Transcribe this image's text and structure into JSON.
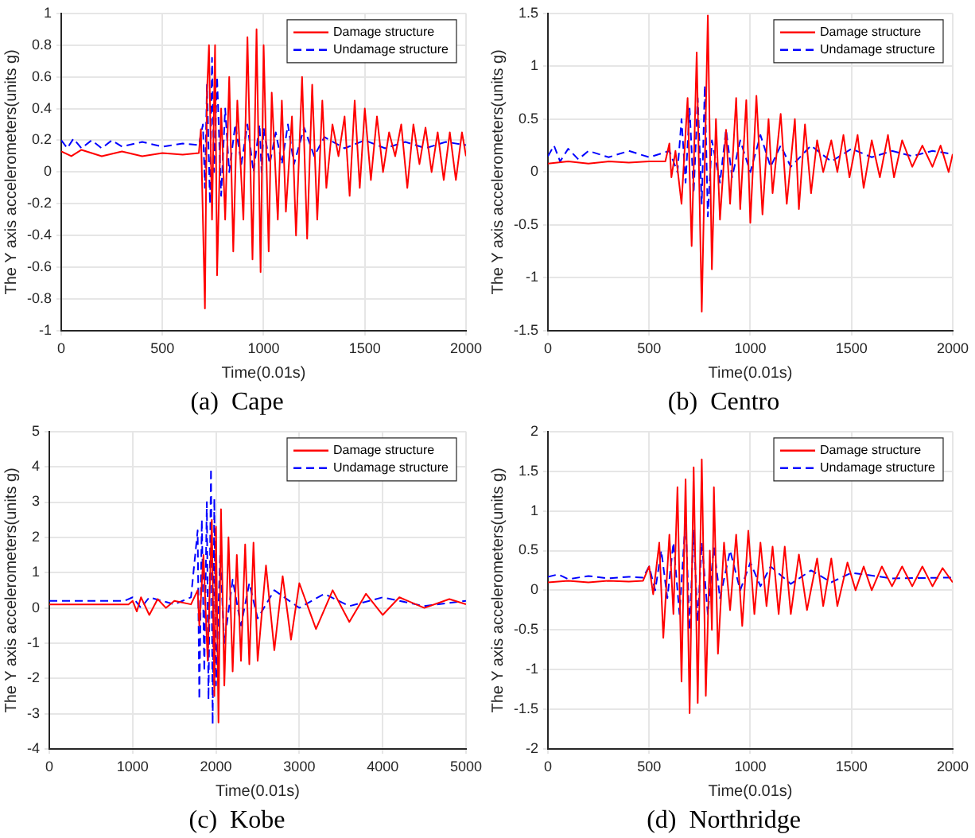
{
  "chart_data": [
    {
      "type": "line",
      "title": "(a)  Cape",
      "xlabel": "Time(0.01s)",
      "ylabel": "The Y axis accelerometers(units g)",
      "xlim": [
        0,
        2000
      ],
      "xticks": [
        0,
        500,
        1000,
        1500,
        2000
      ],
      "ylim": [
        -1,
        1
      ],
      "yticks": [
        -1,
        -0.8,
        -0.6,
        -0.4,
        -0.2,
        0,
        0.2,
        0.4,
        0.6,
        0.8,
        1
      ],
      "grid": true,
      "legend": "top right",
      "marker": "none",
      "series": [
        {
          "name": "Damage structure",
          "color": "#ff0000",
          "line_style": "solid",
          "x": [
            0,
            50,
            100,
            200,
            300,
            400,
            500,
            600,
            680,
            690,
            700,
            710,
            720,
            730,
            745,
            760,
            770,
            790,
            810,
            830,
            850,
            870,
            900,
            920,
            945,
            965,
            985,
            1000,
            1025,
            1040,
            1070,
            1090,
            1110,
            1140,
            1160,
            1190,
            1215,
            1240,
            1265,
            1290,
            1310,
            1340,
            1370,
            1400,
            1425,
            1450,
            1475,
            1500,
            1530,
            1560,
            1590,
            1620,
            1650,
            1680,
            1710,
            1740,
            1770,
            1800,
            1830,
            1860,
            1890,
            1920,
            1950,
            1980,
            2000
          ],
          "values": [
            0.13,
            0.1,
            0.14,
            0.1,
            0.13,
            0.1,
            0.12,
            0.11,
            0.12,
            0.27,
            -0.3,
            -0.86,
            0.5,
            0.8,
            -0.3,
            0.8,
            -0.65,
            0.4,
            -0.3,
            0.6,
            -0.5,
            0.45,
            -0.3,
            0.85,
            -0.55,
            0.9,
            -0.63,
            0.8,
            -0.5,
            0.5,
            -0.3,
            0.45,
            -0.25,
            0.35,
            -0.4,
            0.6,
            -0.42,
            0.55,
            -0.3,
            0.45,
            -0.1,
            0.3,
            0.1,
            0.35,
            -0.15,
            0.45,
            -0.1,
            0.4,
            -0.05,
            0.35,
            0,
            0.25,
            0.1,
            0.3,
            -0.1,
            0.3,
            0.05,
            0.28,
            0,
            0.25,
            -0.05,
            0.25,
            -0.05,
            0.25,
            0.1
          ]
        },
        {
          "name": "Undamage structure",
          "color": "#0000ff",
          "line_style": "dashed",
          "x": [
            0,
            30,
            60,
            100,
            150,
            200,
            250,
            300,
            400,
            500,
            600,
            680,
            700,
            710,
            720,
            735,
            745,
            755,
            770,
            790,
            810,
            830,
            860,
            890,
            920,
            950,
            980,
            990,
            1000,
            1030,
            1060,
            1090,
            1120,
            1150,
            1200,
            1250,
            1300,
            1400,
            1500,
            1600,
            1700,
            1800,
            1900,
            2000
          ],
          "values": [
            0.2,
            0.15,
            0.21,
            0.15,
            0.2,
            0.15,
            0.2,
            0.16,
            0.19,
            0.16,
            0.18,
            0.17,
            0.3,
            -0.1,
            0.55,
            -0.2,
            0.72,
            0,
            0.6,
            -0.15,
            0.4,
            0,
            0.3,
            0.05,
            0.3,
            0,
            0.3,
            0,
            0.28,
            0.05,
            0.25,
            0.05,
            0.3,
            0.05,
            0.28,
            0.1,
            0.22,
            0.15,
            0.2,
            0.15,
            0.19,
            0.15,
            0.19,
            0.17
          ]
        }
      ]
    },
    {
      "type": "line",
      "title": "(b)  Centro",
      "xlabel": "Time(0.01s)",
      "ylabel": "The Y axis accelerometers(units g)",
      "xlim": [
        0,
        2000
      ],
      "xticks": [
        0,
        500,
        1000,
        1500,
        2000
      ],
      "ylim": [
        -1.5,
        1.5
      ],
      "yticks": [
        -1.5,
        -1,
        -0.5,
        0,
        0.5,
        1,
        1.5
      ],
      "grid": true,
      "legend": "top right",
      "marker": "none",
      "series": [
        {
          "name": "Damage structure",
          "color": "#ff0000",
          "line_style": "solid",
          "x": [
            0,
            100,
            200,
            300,
            400,
            500,
            580,
            600,
            610,
            630,
            660,
            690,
            710,
            735,
            760,
            790,
            810,
            830,
            850,
            880,
            900,
            930,
            950,
            980,
            1000,
            1030,
            1060,
            1090,
            1110,
            1150,
            1180,
            1220,
            1240,
            1270,
            1300,
            1330,
            1360,
            1400,
            1430,
            1460,
            1490,
            1530,
            1560,
            1600,
            1640,
            1680,
            1710,
            1750,
            1800,
            1850,
            1900,
            1940,
            1980,
            2000
          ],
          "values": [
            0.08,
            0.1,
            0.08,
            0.1,
            0.09,
            0.1,
            0.1,
            0.27,
            -0.05,
            0.2,
            -0.3,
            0.7,
            -0.7,
            1.13,
            -1.32,
            1.48,
            -0.92,
            0.5,
            -0.45,
            0.4,
            -0.3,
            0.7,
            -0.35,
            0.68,
            -0.48,
            0.72,
            -0.4,
            0.5,
            -0.2,
            0.55,
            -0.3,
            0.5,
            -0.35,
            0.45,
            -0.2,
            0.3,
            0,
            0.3,
            0,
            0.35,
            -0.05,
            0.35,
            -0.15,
            0.3,
            -0.05,
            0.35,
            -0.05,
            0.3,
            0.05,
            0.25,
            0.05,
            0.25,
            0,
            0.17
          ]
        },
        {
          "name": "Undamage structure",
          "color": "#0000ff",
          "line_style": "dashed",
          "x": [
            0,
            30,
            60,
            100,
            150,
            200,
            300,
            400,
            500,
            600,
            640,
            660,
            680,
            700,
            720,
            740,
            760,
            775,
            790,
            810,
            850,
            880,
            910,
            950,
            1000,
            1050,
            1100,
            1150,
            1200,
            1300,
            1400,
            1500,
            1600,
            1700,
            1800,
            1900,
            2000
          ],
          "values": [
            0.15,
            0.25,
            0.1,
            0.22,
            0.12,
            0.2,
            0.14,
            0.2,
            0.14,
            0.2,
            0,
            0.5,
            -0.1,
            0.6,
            -0.2,
            0.7,
            -0.3,
            0.82,
            -0.42,
            0.3,
            -0.1,
            0.4,
            -0.05,
            0.3,
            0,
            0.35,
            0.05,
            0.25,
            0.05,
            0.25,
            0.1,
            0.22,
            0.14,
            0.2,
            0.15,
            0.2,
            0.17
          ]
        }
      ]
    },
    {
      "type": "line",
      "title": "(c)  Kobe",
      "xlabel": "Time(0.01s)",
      "ylabel": "The Y axis accelerometers(units g)",
      "xlim": [
        0,
        5000
      ],
      "xticks": [
        0,
        1000,
        2000,
        3000,
        4000,
        5000
      ],
      "ylim": [
        -4,
        5
      ],
      "yticks": [
        -4,
        -3,
        -2,
        -1,
        0,
        1,
        2,
        3,
        4,
        5
      ],
      "grid": true,
      "legend": "top right",
      "marker": "none",
      "series": [
        {
          "name": "Damage structure",
          "color": "#ff0000",
          "line_style": "solid",
          "x": [
            0,
            500,
            950,
            1000,
            1050,
            1100,
            1200,
            1300,
            1400,
            1500,
            1700,
            1780,
            1800,
            1850,
            1900,
            1950,
            1980,
            2000,
            2030,
            2060,
            2100,
            2150,
            2200,
            2250,
            2300,
            2350,
            2400,
            2450,
            2500,
            2600,
            2700,
            2800,
            2900,
            3000,
            3200,
            3400,
            3600,
            3800,
            4000,
            4200,
            4500,
            4800,
            5000
          ],
          "values": [
            0.1,
            0.1,
            0.1,
            0.2,
            -0.1,
            0.3,
            -0.2,
            0.25,
            0,
            0.2,
            0.1,
            0.5,
            -0.5,
            1.5,
            -1.5,
            2.5,
            -2.5,
            2.3,
            -3.25,
            2.8,
            -2.2,
            2,
            -1.8,
            1.5,
            -1.5,
            1.8,
            -1.6,
            1.85,
            -1.5,
            1.2,
            -1.2,
            0.9,
            -0.9,
            0.7,
            -0.6,
            0.5,
            -0.4,
            0.4,
            -0.2,
            0.3,
            0,
            0.25,
            0.1
          ]
        },
        {
          "name": "Undamage structure",
          "color": "#0000ff",
          "line_style": "dashed",
          "x": [
            0,
            900,
            1000,
            1100,
            1200,
            1500,
            1700,
            1780,
            1800,
            1830,
            1860,
            1890,
            1910,
            1940,
            1960,
            1980,
            2000,
            2050,
            2100,
            2200,
            2300,
            2400,
            2500,
            2700,
            3000,
            3300,
            3600,
            4000,
            4500,
            5000
          ],
          "values": [
            0.2,
            0.2,
            0.3,
            0,
            0.3,
            0.1,
            0.3,
            2.2,
            -2.6,
            2.5,
            -1.8,
            3,
            -2.6,
            3.95,
            -3.3,
            3.1,
            -2.2,
            1.5,
            -1,
            0.8,
            -0.5,
            0.7,
            -0.3,
            0.5,
            0,
            0.4,
            0.05,
            0.3,
            0.05,
            0.2
          ]
        }
      ]
    },
    {
      "type": "line",
      "title": "(d)  Northridge",
      "xlabel": "Time(0.01s)",
      "ylabel": "The Y axis accelerometers(units g)",
      "xlim": [
        0,
        2000
      ],
      "xticks": [
        0,
        500,
        1000,
        1500,
        2000
      ],
      "ylim": [
        -2,
        2
      ],
      "yticks": [
        -2,
        -1.5,
        -1,
        -0.5,
        0,
        0.5,
        1,
        1.5,
        2
      ],
      "grid": true,
      "legend": "top right",
      "marker": "none",
      "series": [
        {
          "name": "Damage structure",
          "color": "#ff0000",
          "line_style": "solid",
          "x": [
            0,
            100,
            200,
            300,
            400,
            470,
            500,
            520,
            550,
            570,
            600,
            620,
            640,
            660,
            680,
            700,
            720,
            740,
            760,
            780,
            800,
            810,
            820,
            840,
            870,
            900,
            930,
            960,
            990,
            1020,
            1050,
            1080,
            1110,
            1140,
            1170,
            1200,
            1240,
            1280,
            1330,
            1360,
            1400,
            1430,
            1480,
            1520,
            1560,
            1600,
            1650,
            1700,
            1750,
            1800,
            1850,
            1900,
            1950,
            2000
          ],
          "values": [
            0.1,
            0.12,
            0.1,
            0.12,
            0.11,
            0.12,
            0.3,
            -0.05,
            0.6,
            -0.6,
            0.7,
            -0.3,
            1.3,
            -1.15,
            1.4,
            -1.55,
            1.55,
            -1.42,
            1.65,
            -1.33,
            0.5,
            -0.5,
            1.3,
            -0.8,
            0.6,
            -0.25,
            0.7,
            -0.45,
            0.75,
            -0.3,
            0.6,
            -0.2,
            0.55,
            -0.3,
            0.55,
            -0.3,
            0.45,
            -0.25,
            0.4,
            -0.2,
            0.4,
            -0.2,
            0.35,
            0,
            0.3,
            0,
            0.3,
            0.05,
            0.3,
            0.05,
            0.3,
            0.05,
            0.28,
            0.1
          ]
        },
        {
          "name": "Undamage structure",
          "color": "#0000ff",
          "line_style": "dashed",
          "x": [
            0,
            50,
            100,
            200,
            300,
            400,
            470,
            500,
            530,
            560,
            590,
            620,
            650,
            680,
            700,
            720,
            740,
            760,
            790,
            820,
            850,
            900,
            950,
            1000,
            1050,
            1100,
            1200,
            1300,
            1400,
            1500,
            1700,
            2000
          ],
          "values": [
            0.17,
            0.2,
            0.14,
            0.18,
            0.15,
            0.17,
            0.16,
            0.3,
            0,
            0.5,
            -0.1,
            0.6,
            -0.3,
            0.9,
            -0.5,
            0.75,
            -0.4,
            0.6,
            -0.3,
            0.55,
            -0.1,
            0.5,
            0,
            0.35,
            0.05,
            0.3,
            0.08,
            0.25,
            0.1,
            0.22,
            0.15,
            0.16
          ]
        }
      ]
    }
  ]
}
